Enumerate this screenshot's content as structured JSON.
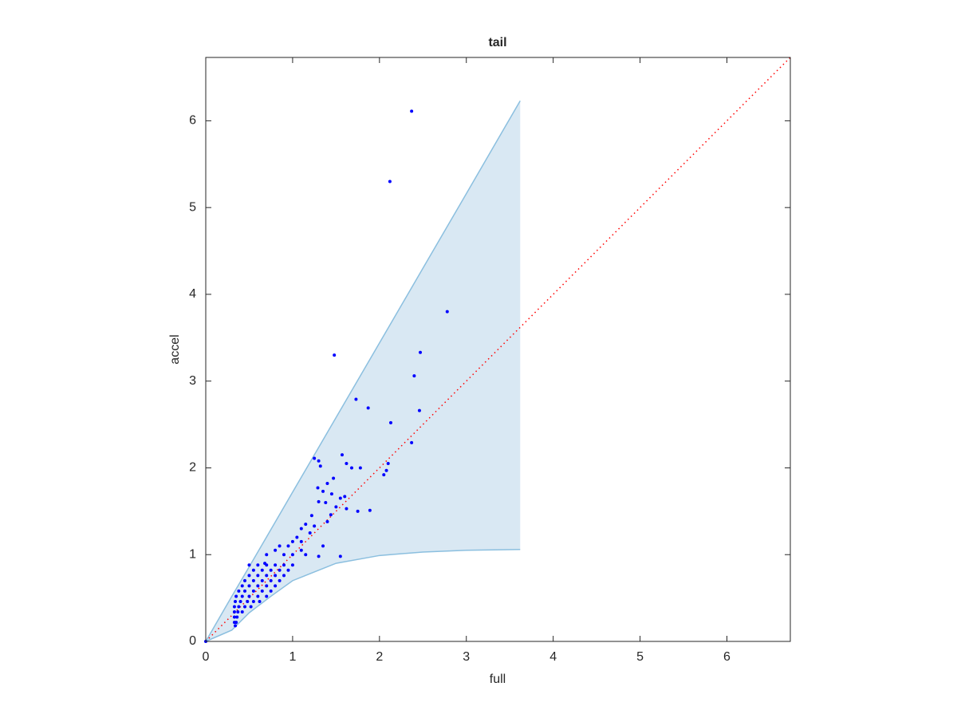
{
  "chart_data": {
    "type": "scatter",
    "title": "tail",
    "x_label": "full",
    "y_label": "accel",
    "xlim": [
      0,
      6.73
    ],
    "ylim": [
      0,
      6.73
    ],
    "xticks": [
      0,
      1,
      2,
      3,
      4,
      5,
      6
    ],
    "yticks": [
      0,
      1,
      2,
      3,
      4,
      5,
      6
    ],
    "color": "#0000ff",
    "x": [
      0,
      2.37,
      2.12,
      2.78,
      1.48,
      2.47,
      2.4,
      1.73,
      1.87,
      2.46,
      2.13,
      2.37,
      2.1,
      2.08,
      2.05,
      1.57,
      1.62,
      1.25,
      1.3,
      1.32,
      1.78,
      1.68,
      1.47,
      1.4,
      1.29,
      1.35,
      1.45,
      1.55,
      1.6,
      1.38,
      1.3,
      1.5,
      1.44,
      1.62,
      1.89,
      1.75,
      1.22,
      1.15,
      1.1,
      1.2,
      1.05,
      1.0,
      0.95,
      1.1,
      0.85,
      0.8,
      1.25,
      1.4,
      1.15,
      1.3,
      1.55,
      1.35,
      0.7,
      0.68,
      0.9,
      1.0,
      1.1,
      0.5,
      0.6,
      0.7,
      0.8,
      0.9,
      1.0,
      0.55,
      0.65,
      0.75,
      0.85,
      0.95,
      0.5,
      0.6,
      0.7,
      0.8,
      0.9,
      0.45,
      0.55,
      0.65,
      0.75,
      0.85,
      0.42,
      0.5,
      0.6,
      0.7,
      0.8,
      0.38,
      0.45,
      0.55,
      0.65,
      0.75,
      0.35,
      0.42,
      0.5,
      0.6,
      0.7,
      0.34,
      0.4,
      0.48,
      0.55,
      0.62,
      0.33,
      0.38,
      0.45,
      0.52,
      0.33,
      0.37,
      0.42,
      0.33,
      0.36,
      0.33,
      0.35,
      0.34
    ],
    "y": [
      0,
      6.11,
      5.3,
      3.8,
      3.3,
      3.33,
      3.06,
      2.79,
      2.69,
      2.66,
      2.52,
      2.29,
      2.05,
      1.97,
      1.92,
      2.15,
      2.05,
      2.11,
      2.08,
      2.02,
      2.0,
      2.0,
      1.88,
      1.82,
      1.77,
      1.73,
      1.7,
      1.65,
      1.67,
      1.6,
      1.61,
      1.55,
      1.46,
      1.53,
      1.51,
      1.5,
      1.45,
      1.35,
      1.3,
      1.25,
      1.2,
      1.15,
      1.1,
      1.15,
      1.1,
      1.05,
      1.33,
      1.38,
      1.0,
      0.98,
      0.98,
      1.1,
      1.0,
      0.9,
      1.0,
      1.0,
      1.05,
      0.88,
      0.88,
      0.88,
      0.88,
      0.88,
      0.88,
      0.82,
      0.82,
      0.82,
      0.82,
      0.82,
      0.76,
      0.76,
      0.76,
      0.76,
      0.76,
      0.7,
      0.7,
      0.7,
      0.7,
      0.7,
      0.64,
      0.64,
      0.64,
      0.64,
      0.64,
      0.58,
      0.58,
      0.58,
      0.58,
      0.58,
      0.52,
      0.52,
      0.52,
      0.52,
      0.52,
      0.46,
      0.46,
      0.46,
      0.46,
      0.46,
      0.4,
      0.4,
      0.4,
      0.4,
      0.34,
      0.34,
      0.34,
      0.28,
      0.28,
      0.22,
      0.22,
      0.18
    ],
    "band": {
      "x": [
        0,
        0.3,
        0.5,
        0.75,
        1,
        1.5,
        2,
        2.5,
        3,
        3.62
      ],
      "upper": [
        0,
        0.52,
        0.86,
        1.29,
        1.72,
        2.58,
        3.44,
        4.3,
        5.16,
        6.23
      ],
      "lower": [
        0,
        0.13,
        0.33,
        0.52,
        0.7,
        0.9,
        0.99,
        1.03,
        1.05,
        1.06
      ],
      "color": "#d9e8f3",
      "edge_color": "#8bbfdf"
    },
    "reference": {
      "x": [
        0,
        6.73
      ],
      "y": [
        0,
        6.73
      ],
      "color": "#ff0000"
    }
  }
}
